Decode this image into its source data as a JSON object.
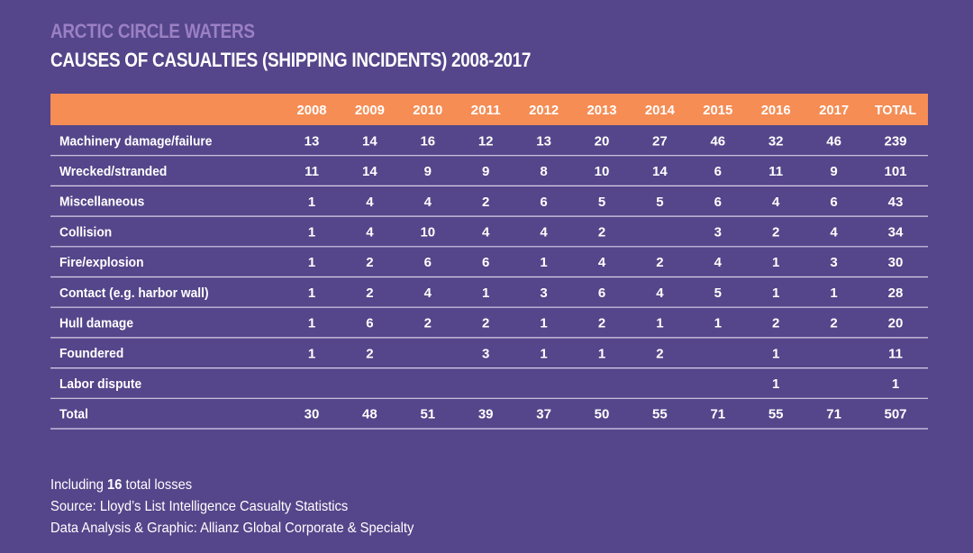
{
  "kicker": "ARCTIC CIRCLE WATERS",
  "title": "CAUSES OF CASUALTIES (SHIPPING INCIDENTS) 2008-2017",
  "colors": {
    "background": "#55458a",
    "header_bar": "#f58d55",
    "kicker": "#9b80c4",
    "text": "#ffffff",
    "rule": "#d9d2ea"
  },
  "chart_data": {
    "type": "table",
    "title": "CAUSES OF CASUALTIES (SHIPPING INCIDENTS) 2008-2017",
    "subtitle": "ARCTIC CIRCLE WATERS",
    "columns": [
      "",
      "2008",
      "2009",
      "2010",
      "2011",
      "2012",
      "2013",
      "2014",
      "2015",
      "2016",
      "2017",
      "TOTAL"
    ],
    "rows": [
      {
        "label": "Machinery damage/failure",
        "values": [
          "13",
          "14",
          "16",
          "12",
          "13",
          "20",
          "27",
          "46",
          "32",
          "46",
          "239"
        ]
      },
      {
        "label": "Wrecked/stranded",
        "values": [
          "11",
          "14",
          "9",
          "9",
          "8",
          "10",
          "14",
          "6",
          "11",
          "9",
          "101"
        ]
      },
      {
        "label": "Miscellaneous",
        "values": [
          "1",
          "4",
          "4",
          "2",
          "6",
          "5",
          "5",
          "6",
          "4",
          "6",
          "43"
        ]
      },
      {
        "label": "Collision",
        "values": [
          "1",
          "4",
          "10",
          "4",
          "4",
          "2",
          "",
          "3",
          "2",
          "4",
          "34"
        ]
      },
      {
        "label": "Fire/explosion",
        "values": [
          "1",
          "2",
          "6",
          "6",
          "1",
          "4",
          "2",
          "4",
          "1",
          "3",
          "30"
        ]
      },
      {
        "label": "Contact (e.g. harbor wall)",
        "values": [
          "1",
          "2",
          "4",
          "1",
          "3",
          "6",
          "4",
          "5",
          "1",
          "1",
          "28"
        ]
      },
      {
        "label": "Hull damage",
        "values": [
          "1",
          "6",
          "2",
          "2",
          "1",
          "2",
          "1",
          "1",
          "2",
          "2",
          "20"
        ]
      },
      {
        "label": "Foundered",
        "values": [
          "1",
          "2",
          "",
          "3",
          "1",
          "1",
          "2",
          "",
          "1",
          "",
          "11"
        ]
      },
      {
        "label": "Labor dispute",
        "values": [
          "",
          "",
          "",
          "",
          "",
          "",
          "",
          "",
          "1",
          "",
          "1"
        ]
      },
      {
        "label": "Total",
        "values": [
          "30",
          "48",
          "51",
          "39",
          "37",
          "50",
          "55",
          "71",
          "55",
          "71",
          "507"
        ]
      }
    ]
  },
  "footer": {
    "losses_prefix": "Including ",
    "losses_count": "16",
    "losses_suffix": " total losses",
    "source": "Source: Lloyd’s List Intelligence Casualty Statistics",
    "credit": "Data Analysis & Graphic: Allianz Global Corporate & Specialty"
  }
}
